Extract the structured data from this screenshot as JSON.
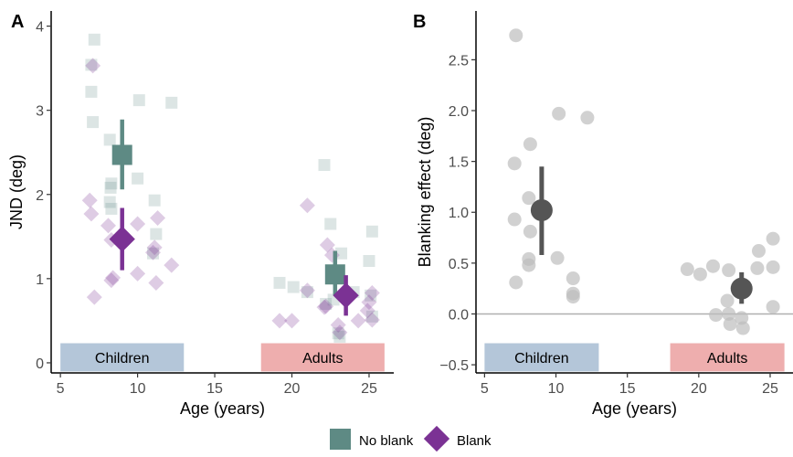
{
  "colors": {
    "no_blank": "#5e8a84",
    "blank": "#7b3294",
    "effect_points": "#bdbdbd",
    "effect_mean": "#555555",
    "children_band": "#b4c6d9",
    "adults_band": "#eeaeae",
    "zero_line": "#b0b0b0"
  },
  "legend": {
    "no_blank_label": "No blank",
    "blank_label": "Blank"
  },
  "chart_data": [
    {
      "panel": "A",
      "type": "scatter",
      "xlabel": "Age (years)",
      "ylabel": "JND (deg)",
      "xlim": [
        4.4,
        26.6
      ],
      "ylim": [
        -0.12,
        4.18
      ],
      "x_ticks": [
        5,
        10,
        15,
        20,
        25
      ],
      "y_ticks": [
        0,
        1,
        2,
        3,
        4
      ],
      "grid": false,
      "groups": [
        {
          "label": "Children",
          "x_range": [
            5,
            13
          ]
        },
        {
          "label": "Adults",
          "x_range": [
            18,
            26
          ]
        }
      ],
      "series": [
        {
          "name": "No blank",
          "marker": "square",
          "points": [
            {
              "x": 7.2,
              "y": 3.84
            },
            {
              "x": 7.0,
              "y": 3.22
            },
            {
              "x": 7.1,
              "y": 2.86
            },
            {
              "x": 8.2,
              "y": 2.65
            },
            {
              "x": 8.3,
              "y": 2.13
            },
            {
              "x": 8.25,
              "y": 2.08
            },
            {
              "x": 8.2,
              "y": 1.91
            },
            {
              "x": 8.3,
              "y": 1.83
            },
            {
              "x": 10.1,
              "y": 3.12
            },
            {
              "x": 12.2,
              "y": 3.09
            },
            {
              "x": 10.0,
              "y": 2.19
            },
            {
              "x": 11.1,
              "y": 1.93
            },
            {
              "x": 11.2,
              "y": 1.53
            },
            {
              "x": 11.0,
              "y": 1.3
            },
            {
              "x": 7.0,
              "y": 3.54
            },
            {
              "x": 22.1,
              "y": 2.35
            },
            {
              "x": 21.0,
              "y": 0.84
            },
            {
              "x": 22.5,
              "y": 1.65
            },
            {
              "x": 23.2,
              "y": 1.3
            },
            {
              "x": 25.2,
              "y": 1.56
            },
            {
              "x": 25.0,
              "y": 1.21
            },
            {
              "x": 19.2,
              "y": 0.95
            },
            {
              "x": 20.1,
              "y": 0.9
            },
            {
              "x": 22.7,
              "y": 0.75
            },
            {
              "x": 24.0,
              "y": 0.84
            },
            {
              "x": 25.1,
              "y": 0.8
            },
            {
              "x": 25.2,
              "y": 0.55
            },
            {
              "x": 22.2,
              "y": 0.7
            },
            {
              "x": 23.1,
              "y": 0.31
            },
            {
              "x": 23.0,
              "y": 0.35
            }
          ],
          "mean": {
            "x": 9.0,
            "y": 2.47,
            "ci": [
              2.06,
              2.89
            ]
          },
          "mean_adults": {
            "x": 22.8,
            "y": 1.05,
            "ci": [
              0.8,
              1.33
            ]
          }
        },
        {
          "name": "Blank",
          "marker": "diamond",
          "points": [
            {
              "x": 7.1,
              "y": 3.53
            },
            {
              "x": 6.9,
              "y": 1.93
            },
            {
              "x": 7.0,
              "y": 1.77
            },
            {
              "x": 8.1,
              "y": 1.63
            },
            {
              "x": 8.3,
              "y": 1.46
            },
            {
              "x": 8.4,
              "y": 1.01
            },
            {
              "x": 8.3,
              "y": 0.98
            },
            {
              "x": 7.2,
              "y": 0.78
            },
            {
              "x": 10.0,
              "y": 1.65
            },
            {
              "x": 11.3,
              "y": 1.72
            },
            {
              "x": 11.1,
              "y": 1.37
            },
            {
              "x": 11.0,
              "y": 1.31
            },
            {
              "x": 10.0,
              "y": 1.06
            },
            {
              "x": 12.2,
              "y": 1.16
            },
            {
              "x": 11.2,
              "y": 0.95
            },
            {
              "x": 21.0,
              "y": 1.87
            },
            {
              "x": 21.0,
              "y": 0.86
            },
            {
              "x": 22.3,
              "y": 1.4
            },
            {
              "x": 22.6,
              "y": 1.28
            },
            {
              "x": 19.2,
              "y": 0.5
            },
            {
              "x": 20.0,
              "y": 0.5
            },
            {
              "x": 22.1,
              "y": 0.66
            },
            {
              "x": 22.2,
              "y": 0.67
            },
            {
              "x": 23.0,
              "y": 0.45
            },
            {
              "x": 23.1,
              "y": 0.36
            },
            {
              "x": 24.3,
              "y": 0.5
            },
            {
              "x": 25.2,
              "y": 0.51
            },
            {
              "x": 25.2,
              "y": 0.83
            },
            {
              "x": 25.0,
              "y": 0.72
            },
            {
              "x": 24.9,
              "y": 0.62
            }
          ],
          "mean": {
            "x": 9.0,
            "y": 1.47,
            "ci": [
              1.1,
              1.84
            ]
          },
          "mean_adults": {
            "x": 23.5,
            "y": 0.8,
            "ci": [
              0.56,
              1.04
            ]
          }
        }
      ]
    },
    {
      "panel": "B",
      "type": "scatter",
      "xlabel": "Age (years)",
      "ylabel": "Blanking effect (deg)",
      "xlim": [
        4.4,
        26.6
      ],
      "ylim": [
        -0.58,
        2.98
      ],
      "x_ticks": [
        5,
        10,
        15,
        20,
        25
      ],
      "y_ticks": [
        -0.5,
        0.0,
        0.5,
        1.0,
        1.5,
        2.0,
        2.5
      ],
      "y_tick_labels": [
        "−0.5",
        "0.0",
        "0.5",
        "1.0",
        "1.5",
        "2.0",
        "2.5"
      ],
      "zero_line": 0,
      "grid": false,
      "groups": [
        {
          "label": "Children",
          "x_range": [
            5,
            13
          ]
        },
        {
          "label": "Adults",
          "x_range": [
            18,
            26
          ]
        }
      ],
      "series": [
        {
          "name": "",
          "marker": "circle",
          "points": [
            {
              "x": 7.2,
              "y": 2.74
            },
            {
              "x": 7.1,
              "y": 1.48
            },
            {
              "x": 8.2,
              "y": 1.67
            },
            {
              "x": 8.1,
              "y": 1.14
            },
            {
              "x": 7.1,
              "y": 0.93
            },
            {
              "x": 8.2,
              "y": 0.81
            },
            {
              "x": 8.1,
              "y": 0.54
            },
            {
              "x": 8.1,
              "y": 0.48
            },
            {
              "x": 7.2,
              "y": 0.31
            },
            {
              "x": 10.2,
              "y": 1.97
            },
            {
              "x": 12.2,
              "y": 1.93
            },
            {
              "x": 10.1,
              "y": 0.55
            },
            {
              "x": 11.2,
              "y": 0.35
            },
            {
              "x": 11.2,
              "y": 0.2
            },
            {
              "x": 11.2,
              "y": 0.17
            },
            {
              "x": 19.2,
              "y": 0.44
            },
            {
              "x": 20.1,
              "y": 0.39
            },
            {
              "x": 21.0,
              "y": 0.47
            },
            {
              "x": 22.1,
              "y": 0.43
            },
            {
              "x": 24.2,
              "y": 0.62
            },
            {
              "x": 25.2,
              "y": 0.74
            },
            {
              "x": 24.1,
              "y": 0.45
            },
            {
              "x": 25.2,
              "y": 0.46
            },
            {
              "x": 22.0,
              "y": 0.13
            },
            {
              "x": 21.2,
              "y": -0.01
            },
            {
              "x": 22.2,
              "y": -0.1
            },
            {
              "x": 22.1,
              "y": 0.0
            },
            {
              "x": 23.0,
              "y": -0.04
            },
            {
              "x": 23.1,
              "y": -0.14
            },
            {
              "x": 25.2,
              "y": 0.07
            }
          ],
          "mean": {
            "x": 9.0,
            "y": 1.02,
            "ci": [
              0.58,
              1.45
            ]
          },
          "mean_adults": {
            "x": 23.0,
            "y": 0.25,
            "ci": [
              0.1,
              0.41
            ]
          }
        }
      ]
    }
  ]
}
